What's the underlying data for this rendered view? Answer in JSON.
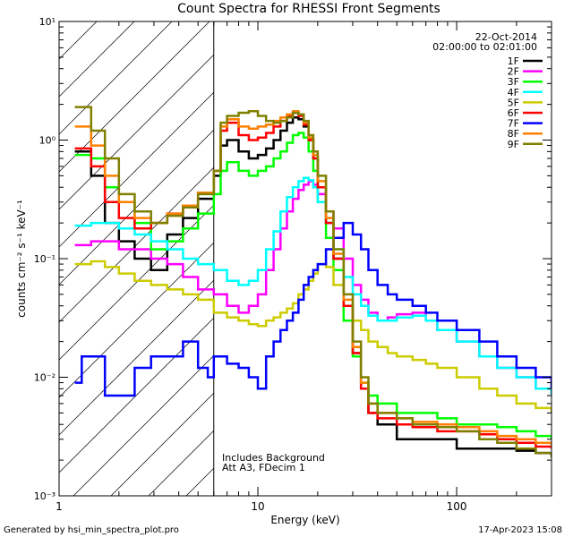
{
  "chart_data": {
    "type": "line",
    "title": "Count Spectra for RHESSI Front Segments",
    "xlabel": "Energy (keV)",
    "ylabel": "counts cm⁻² s⁻¹ keV⁻¹",
    "xscale": "log",
    "yscale": "log",
    "xlim": [
      1,
      300
    ],
    "ylim": [
      0.001,
      10
    ],
    "x_ticks": [
      1,
      10,
      100
    ],
    "x_tick_labels": [
      "1",
      "10",
      "100"
    ],
    "y_ticks": [
      0.001,
      0.01,
      0.1,
      1,
      10
    ],
    "y_tick_labels": [
      "10⁻³",
      "10⁻²",
      "10⁻¹",
      "10⁰",
      "10¹"
    ],
    "date_label": "22-Oct-2014",
    "time_label": "02:00:00 to 02:01:00",
    "notes": [
      "Includes Background",
      "Att A3, FDecim 1"
    ],
    "threshold_energy_kev": 6,
    "hatch_region_kev": [
      1,
      6
    ],
    "footer_left": "Generated by hsi_min_spectra_plot.pro",
    "footer_right": "17-Apr-2023 15:08",
    "series": [
      {
        "name": "1F",
        "color": "#000000",
        "x": [
          1.2,
          1.45,
          1.7,
          2.0,
          2.4,
          2.9,
          3.5,
          4.2,
          5.0,
          6.0,
          6.5,
          7.0,
          8.0,
          9.0,
          10.0,
          11.0,
          12.0,
          13.0,
          14.0,
          15.0,
          16.0,
          17.0,
          18.0,
          19.0,
          20.0,
          22.0,
          24.0,
          27.0,
          30.0,
          33.0,
          36.0,
          40.0,
          50.0,
          60.0,
          80.0,
          100.0,
          130.0,
          160.0,
          200.0,
          250.0,
          300.0
        ],
        "values": [
          0.8,
          0.5,
          0.2,
          0.14,
          0.1,
          0.08,
          0.16,
          0.22,
          0.32,
          0.5,
          0.9,
          1.0,
          0.8,
          0.7,
          0.75,
          0.85,
          1.0,
          1.2,
          1.4,
          1.55,
          1.5,
          1.3,
          1.0,
          0.7,
          0.4,
          0.2,
          0.1,
          0.04,
          0.016,
          0.008,
          0.005,
          0.004,
          0.003,
          0.003,
          0.003,
          0.0025,
          0.0025,
          0.0025,
          0.0024,
          0.0023,
          0.0022
        ]
      },
      {
        "name": "2F",
        "color": "#ff00ff",
        "x": [
          1.2,
          1.45,
          1.7,
          2.0,
          2.4,
          2.9,
          3.5,
          4.2,
          5.0,
          6.0,
          7.0,
          8.0,
          9.0,
          10.0,
          11.0,
          12.0,
          13.0,
          14.0,
          15.0,
          16.0,
          17.0,
          18.0,
          19.0,
          20.0,
          22.0,
          24.0,
          27.0,
          30.0,
          33.0,
          36.0,
          40.0,
          45.0,
          50.0,
          60.0,
          70.0,
          80.0,
          100.0,
          130.0,
          160.0,
          200.0,
          250.0,
          300.0
        ],
        "values": [
          0.13,
          0.14,
          0.14,
          0.12,
          0.12,
          0.1,
          0.09,
          0.07,
          0.055,
          0.05,
          0.04,
          0.035,
          0.04,
          0.05,
          0.08,
          0.12,
          0.18,
          0.25,
          0.32,
          0.38,
          0.42,
          0.45,
          0.42,
          0.35,
          0.25,
          0.18,
          0.1,
          0.06,
          0.045,
          0.035,
          0.03,
          0.032,
          0.034,
          0.035,
          0.03,
          0.025,
          0.02,
          0.015,
          0.012,
          0.01,
          0.008,
          0.007
        ]
      },
      {
        "name": "3F",
        "color": "#00ff00",
        "x": [
          1.2,
          1.45,
          1.7,
          2.0,
          2.4,
          2.9,
          3.5,
          4.2,
          5.0,
          6.0,
          6.5,
          7.0,
          8.0,
          9.0,
          10.0,
          11.0,
          12.0,
          13.0,
          14.0,
          15.0,
          16.0,
          17.0,
          18.0,
          19.0,
          20.0,
          22.0,
          24.0,
          27.0,
          30.0,
          33.0,
          36.0,
          40.0,
          50.0,
          60.0,
          80.0,
          100.0,
          130.0,
          160.0,
          200.0,
          250.0,
          300.0
        ],
        "values": [
          0.75,
          0.7,
          0.4,
          0.3,
          0.2,
          0.12,
          0.14,
          0.18,
          0.24,
          0.35,
          0.55,
          0.65,
          0.55,
          0.5,
          0.55,
          0.6,
          0.7,
          0.8,
          0.95,
          1.1,
          1.15,
          1.05,
          0.8,
          0.55,
          0.3,
          0.15,
          0.08,
          0.03,
          0.015,
          0.009,
          0.007,
          0.006,
          0.005,
          0.005,
          0.0045,
          0.004,
          0.004,
          0.0038,
          0.0035,
          0.0032,
          0.003
        ]
      },
      {
        "name": "4F",
        "color": "#00ffff",
        "x": [
          1.2,
          1.45,
          1.7,
          2.0,
          2.4,
          2.9,
          3.5,
          4.2,
          5.0,
          6.0,
          7.0,
          8.0,
          9.0,
          10.0,
          11.0,
          12.0,
          13.0,
          14.0,
          15.0,
          16.0,
          17.0,
          18.0,
          19.0,
          20.0,
          22.0,
          24.0,
          27.0,
          30.0,
          33.0,
          36.0,
          40.0,
          45.0,
          50.0,
          60.0,
          70.0,
          80.0,
          100.0,
          130.0,
          160.0,
          200.0,
          250.0,
          300.0
        ],
        "values": [
          0.19,
          0.2,
          0.2,
          0.18,
          0.16,
          0.14,
          0.12,
          0.1,
          0.09,
          0.08,
          0.065,
          0.06,
          0.065,
          0.08,
          0.12,
          0.17,
          0.25,
          0.33,
          0.4,
          0.45,
          0.48,
          0.46,
          0.4,
          0.3,
          0.2,
          0.12,
          0.07,
          0.05,
          0.04,
          0.033,
          0.03,
          0.03,
          0.032,
          0.033,
          0.03,
          0.025,
          0.02,
          0.015,
          0.012,
          0.01,
          0.008,
          0.007
        ]
      },
      {
        "name": "5F",
        "color": "#cccc00",
        "x": [
          1.2,
          1.45,
          1.7,
          2.0,
          2.4,
          2.9,
          3.5,
          4.2,
          5.0,
          6.0,
          7.0,
          8.0,
          9.0,
          10.0,
          11.0,
          12.0,
          13.0,
          14.0,
          15.0,
          16.0,
          17.0,
          18.0,
          19.0,
          20.0,
          22.0,
          24.0,
          27.0,
          30.0,
          33.0,
          36.0,
          40.0,
          45.0,
          50.0,
          60.0,
          70.0,
          80.0,
          100.0,
          130.0,
          160.0,
          200.0,
          250.0,
          300.0
        ],
        "values": [
          0.09,
          0.095,
          0.085,
          0.075,
          0.065,
          0.06,
          0.055,
          0.05,
          0.045,
          0.035,
          0.032,
          0.03,
          0.028,
          0.027,
          0.03,
          0.032,
          0.035,
          0.038,
          0.042,
          0.05,
          0.055,
          0.065,
          0.075,
          0.09,
          0.085,
          0.06,
          0.04,
          0.03,
          0.025,
          0.02,
          0.018,
          0.016,
          0.015,
          0.014,
          0.013,
          0.012,
          0.01,
          0.008,
          0.007,
          0.006,
          0.0055,
          0.005
        ]
      },
      {
        "name": "6F",
        "color": "#ff0000",
        "x": [
          1.2,
          1.45,
          1.7,
          2.0,
          2.4,
          2.9,
          3.5,
          4.2,
          5.0,
          6.0,
          6.5,
          7.0,
          8.0,
          9.0,
          10.0,
          11.0,
          12.0,
          13.0,
          14.0,
          15.0,
          16.0,
          17.0,
          18.0,
          19.0,
          20.0,
          22.0,
          24.0,
          27.0,
          30.0,
          33.0,
          36.0,
          40.0,
          50.0,
          60.0,
          80.0,
          100.0,
          130.0,
          160.0,
          200.0,
          250.0,
          300.0
        ],
        "values": [
          0.85,
          0.6,
          0.3,
          0.22,
          0.18,
          0.2,
          0.24,
          0.28,
          0.36,
          0.55,
          1.2,
          1.4,
          1.1,
          1.0,
          1.05,
          1.15,
          1.3,
          1.45,
          1.6,
          1.7,
          1.6,
          1.35,
          1.0,
          0.7,
          0.4,
          0.2,
          0.1,
          0.04,
          0.016,
          0.008,
          0.005,
          0.0045,
          0.004,
          0.0038,
          0.0035,
          0.0035,
          0.0033,
          0.003,
          0.0028,
          0.0026,
          0.0025
        ]
      },
      {
        "name": "7F",
        "color": "#0000ff",
        "x": [
          1.2,
          1.3,
          1.5,
          1.7,
          2.0,
          2.4,
          2.9,
          3.5,
          4.2,
          5.0,
          5.6,
          6.0,
          7.0,
          8.0,
          9.0,
          10.0,
          11.0,
          12.0,
          13.0,
          14.0,
          15.0,
          16.0,
          17.0,
          18.0,
          19.0,
          20.0,
          22.0,
          24.0,
          27.0,
          30.0,
          33.0,
          36.0,
          40.0,
          45.0,
          50.0,
          60.0,
          70.0,
          80.0,
          100.0,
          130.0,
          160.0,
          200.0,
          250.0,
          300.0
        ],
        "values": [
          0.009,
          0.015,
          0.015,
          0.007,
          0.007,
          0.012,
          0.015,
          0.015,
          0.02,
          0.012,
          0.01,
          0.015,
          0.013,
          0.012,
          0.01,
          0.008,
          0.015,
          0.02,
          0.025,
          0.03,
          0.035,
          0.045,
          0.06,
          0.07,
          0.08,
          0.09,
          0.12,
          0.15,
          0.2,
          0.16,
          0.12,
          0.08,
          0.06,
          0.05,
          0.045,
          0.04,
          0.035,
          0.03,
          0.025,
          0.02,
          0.015,
          0.012,
          0.01,
          0.008
        ]
      },
      {
        "name": "8F",
        "color": "#ff8000",
        "x": [
          1.2,
          1.45,
          1.7,
          2.0,
          2.4,
          2.9,
          3.5,
          4.2,
          5.0,
          6.0,
          6.5,
          7.0,
          8.0,
          9.0,
          10.0,
          11.0,
          12.0,
          13.0,
          14.0,
          15.0,
          16.0,
          17.0,
          18.0,
          19.0,
          20.0,
          22.0,
          24.0,
          27.0,
          30.0,
          33.0,
          36.0,
          40.0,
          50.0,
          60.0,
          80.0,
          100.0,
          130.0,
          160.0,
          200.0,
          250.0,
          300.0
        ],
        "values": [
          1.3,
          0.9,
          0.5,
          0.3,
          0.22,
          0.2,
          0.24,
          0.28,
          0.36,
          0.55,
          1.3,
          1.5,
          1.3,
          1.25,
          1.3,
          1.35,
          1.45,
          1.55,
          1.65,
          1.75,
          1.65,
          1.4,
          1.05,
          0.75,
          0.45,
          0.22,
          0.11,
          0.045,
          0.018,
          0.009,
          0.006,
          0.005,
          0.0045,
          0.0042,
          0.004,
          0.0038,
          0.0035,
          0.0032,
          0.003,
          0.0028,
          0.0026
        ]
      },
      {
        "name": "9F",
        "color": "#808000",
        "x": [
          1.2,
          1.45,
          1.7,
          2.0,
          2.4,
          2.9,
          3.5,
          4.2,
          5.0,
          6.0,
          6.5,
          7.0,
          8.0,
          9.0,
          10.0,
          11.0,
          12.0,
          13.0,
          14.0,
          15.0,
          16.0,
          17.0,
          18.0,
          19.0,
          20.0,
          22.0,
          24.0,
          27.0,
          30.0,
          33.0,
          36.0,
          40.0,
          50.0,
          60.0,
          80.0,
          100.0,
          130.0,
          160.0,
          200.0,
          250.0,
          300.0
        ],
        "values": [
          1.9,
          1.2,
          0.7,
          0.35,
          0.25,
          0.2,
          0.23,
          0.27,
          0.35,
          0.55,
          1.4,
          1.6,
          1.7,
          1.75,
          1.6,
          1.45,
          1.4,
          1.45,
          1.55,
          1.7,
          1.65,
          1.45,
          1.1,
          0.8,
          0.5,
          0.25,
          0.12,
          0.05,
          0.02,
          0.01,
          0.006,
          0.005,
          0.0045,
          0.004,
          0.0038,
          0.0035,
          0.003,
          0.0028,
          0.0025,
          0.0023,
          0.0021
        ]
      }
    ]
  }
}
